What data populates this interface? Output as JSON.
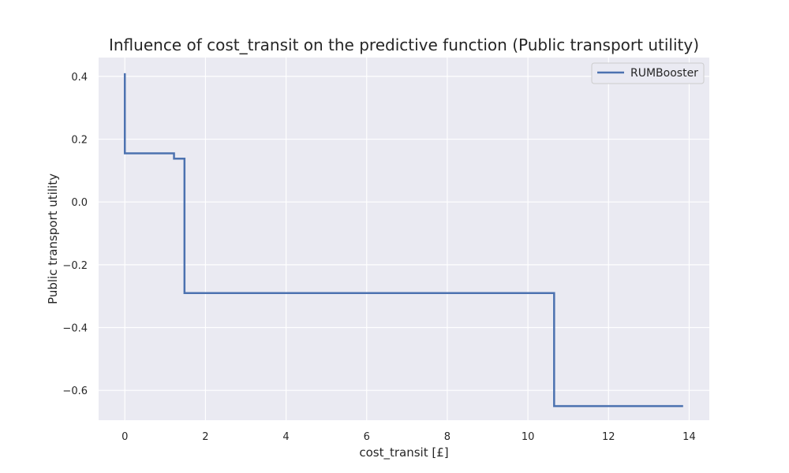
{
  "chart_data": {
    "type": "line",
    "title": "Influence of cost_transit on the predictive function (Public transport utility)",
    "xlabel": "cost_transit [£]",
    "ylabel": "Public transport utility",
    "xlim": [
      -0.65,
      14.5
    ],
    "ylim": [
      -0.695,
      0.46
    ],
    "xticks": [
      0,
      2,
      4,
      6,
      8,
      10,
      12,
      14
    ],
    "xtick_labels": [
      "0",
      "2",
      "4",
      "6",
      "8",
      "10",
      "12",
      "14"
    ],
    "yticks": [
      0.4,
      0.2,
      0.0,
      -0.2,
      -0.4,
      -0.6
    ],
    "ytick_labels": [
      "0.4",
      "0.2",
      "0.0",
      "−0.2",
      "−0.4",
      "−0.6"
    ],
    "grid": true,
    "legend_position": "top-right",
    "colors": {
      "background": "#eaeaf2",
      "grid": "#ffffff",
      "series": "#4c72b0"
    },
    "series": [
      {
        "name": "RUMBooster",
        "step": true,
        "x": [
          0.0,
          0.0,
          1.22,
          1.22,
          1.48,
          1.48,
          10.65,
          10.65,
          13.85
        ],
        "y": [
          0.41,
          0.155,
          0.155,
          0.138,
          0.138,
          -0.29,
          -0.29,
          -0.65,
          -0.65
        ]
      }
    ]
  }
}
